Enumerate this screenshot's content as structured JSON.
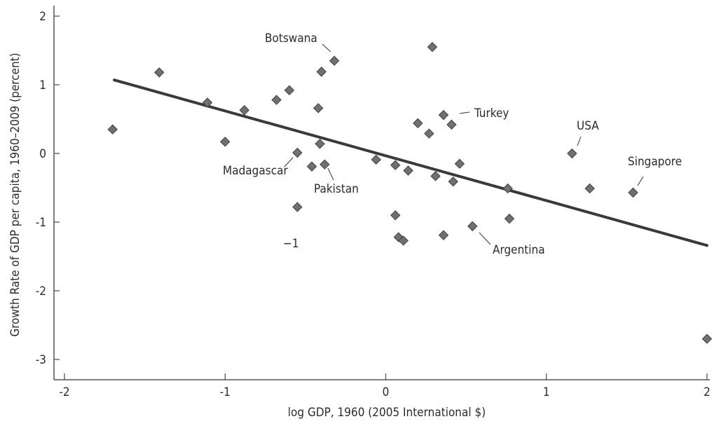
{
  "chart_data": {
    "type": "scatter",
    "title": "",
    "xlabel": "log GDP, 1960 (2005 International $)",
    "ylabel": "Growth Rate of GDP per capita, 1960–2009 (percent)",
    "xlim": [
      -2,
      2
    ],
    "ylim": [
      -3,
      2
    ],
    "xticks": [
      "-2",
      "-1",
      "0",
      "1",
      "2"
    ],
    "yticks": [
      "2",
      "1",
      "0",
      "-1",
      "-2",
      "-3"
    ],
    "x_tick_values": [
      -2,
      -1,
      0,
      1,
      2
    ],
    "y_tick_values": [
      2,
      1,
      0,
      -1,
      -2,
      -3
    ],
    "grid": false,
    "legend": "none",
    "marker_color": "#707070",
    "line_color": "#3a3a3a",
    "points": [
      {
        "x": -1.7,
        "y": 0.35
      },
      {
        "x": -1.41,
        "y": 1.18
      },
      {
        "x": -1.11,
        "y": 0.74
      },
      {
        "x": -1.0,
        "y": 0.17
      },
      {
        "x": -0.88,
        "y": 0.63
      },
      {
        "x": -0.68,
        "y": 0.78
      },
      {
        "x": -0.6,
        "y": 0.92
      },
      {
        "x": -0.55,
        "y": 0.01
      },
      {
        "x": -0.55,
        "y": -0.78
      },
      {
        "x": -0.46,
        "y": -0.19
      },
      {
        "x": -0.42,
        "y": 0.66
      },
      {
        "x": -0.41,
        "y": 0.14
      },
      {
        "x": -0.4,
        "y": 1.19
      },
      {
        "x": -0.38,
        "y": -0.16
      },
      {
        "x": -0.32,
        "y": 1.35
      },
      {
        "x": -0.06,
        "y": -0.09
      },
      {
        "x": 0.06,
        "y": -0.17
      },
      {
        "x": 0.06,
        "y": -0.9
      },
      {
        "x": 0.08,
        "y": -1.22
      },
      {
        "x": 0.11,
        "y": -1.27
      },
      {
        "x": 0.14,
        "y": -0.25
      },
      {
        "x": 0.2,
        "y": 0.44
      },
      {
        "x": 0.27,
        "y": 0.29
      },
      {
        "x": 0.29,
        "y": 1.55
      },
      {
        "x": 0.31,
        "y": -0.33
      },
      {
        "x": 0.36,
        "y": 0.56
      },
      {
        "x": 0.36,
        "y": -1.19
      },
      {
        "x": 0.41,
        "y": 0.42
      },
      {
        "x": 0.42,
        "y": -0.41
      },
      {
        "x": 0.46,
        "y": -0.15
      },
      {
        "x": 0.54,
        "y": -1.06
      },
      {
        "x": 0.76,
        "y": -0.51
      },
      {
        "x": 0.77,
        "y": -0.95
      },
      {
        "x": 1.16,
        "y": 0.0
      },
      {
        "x": 1.27,
        "y": -0.51
      },
      {
        "x": 1.54,
        "y": -0.57
      },
      {
        "x": 2.0,
        "y": -2.7
      }
    ],
    "trend_line": {
      "x": [
        -1.69,
        2.0
      ],
      "y": [
        1.07,
        -1.34
      ]
    },
    "annotations": [
      {
        "text": "Botswana",
        "x": -0.32,
        "y": 1.35
      },
      {
        "text": "Turkey",
        "x": 0.36,
        "y": 0.56
      },
      {
        "text": "USA",
        "x": 1.16,
        "y": 0.0
      },
      {
        "text": "Singapore",
        "x": 1.54,
        "y": -0.57
      },
      {
        "text": "Madagascar",
        "x": -0.55,
        "y": 0.01
      },
      {
        "text": "Pakistan",
        "x": -0.38,
        "y": -0.16
      },
      {
        "text": "Argentina",
        "x": 0.54,
        "y": -1.06
      }
    ],
    "stray_label": "−1"
  }
}
